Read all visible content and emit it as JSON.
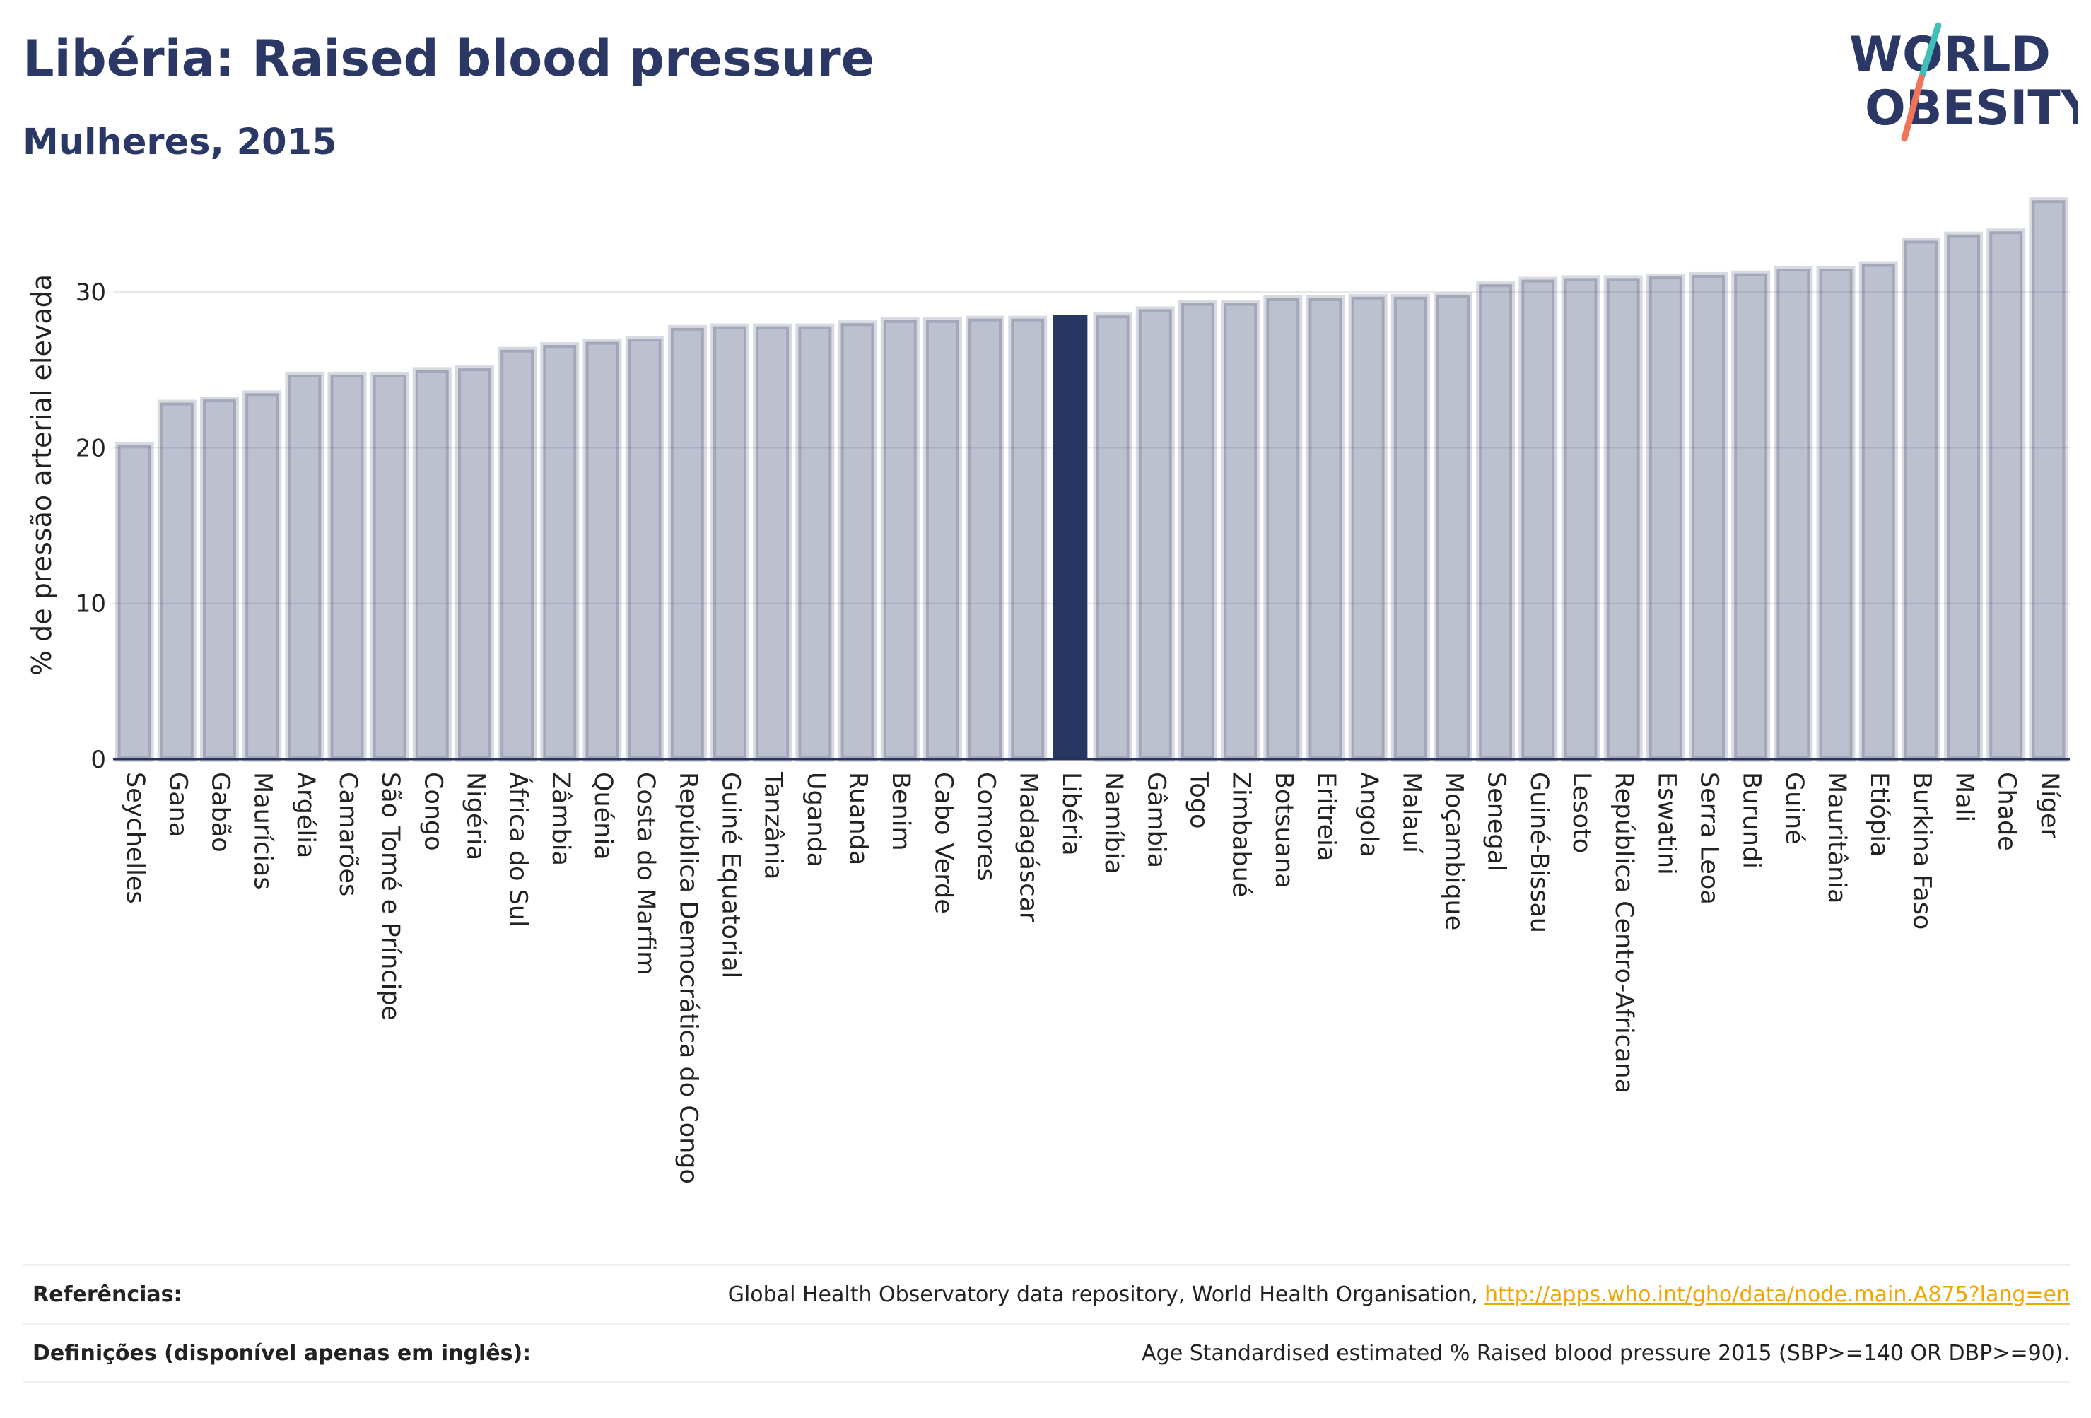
{
  "header": {
    "title": "Libéria: Raised blood pressure",
    "subtitle": "Mulheres, 2015"
  },
  "logo": {
    "line1": "WORLD",
    "line2": "OBESITY"
  },
  "colors": {
    "brand": "#253361",
    "highlight": "#283664",
    "bar": "#bfc3d0",
    "link": "#f0a500",
    "logo_teal": "#3fbfb8",
    "logo_coral": "#f0735a"
  },
  "chart_data": {
    "type": "bar",
    "title": "Libéria: Raised blood pressure",
    "subtitle": "Mulheres, 2015",
    "xlabel": "",
    "ylabel": "% de pressão arterial elevada",
    "ylim": [
      0,
      36.5
    ],
    "yticks": [
      0,
      10,
      20,
      30
    ],
    "grid": true,
    "highlight": "Libéria",
    "categories": [
      "Seychelles",
      "Gana",
      "Gabão",
      "Maurícias",
      "Argélia",
      "Camarões",
      "São Tomé e Príncipe",
      "Congo",
      "Nigéria",
      "África do Sul",
      "Zâmbia",
      "Quénia",
      "Costa do Marfim",
      "República Democrática do Congo",
      "Guiné Equatorial",
      "Tanzânia",
      "Uganda",
      "Ruanda",
      "Benim",
      "Cabo Verde",
      "Comores",
      "Madagáscar",
      "Libéria",
      "Namíbia",
      "Gâmbia",
      "Togo",
      "Zimbabué",
      "Botsuana",
      "Eritreia",
      "Angola",
      "Malauí",
      "Moçambique",
      "Senegal",
      "Guiné-Bissau",
      "Lesoto",
      "República Centro-Africana",
      "Eswatini",
      "Serra Leoa",
      "Burundi",
      "Guiné",
      "Mauritânia",
      "Etiópia",
      "Burkina Faso",
      "Mali",
      "Chade",
      "Níger"
    ],
    "values": [
      20.2,
      22.9,
      23.1,
      23.5,
      24.7,
      24.7,
      24.7,
      25.0,
      25.1,
      26.3,
      26.6,
      26.8,
      27.0,
      27.7,
      27.8,
      27.8,
      27.8,
      28.0,
      28.2,
      28.2,
      28.3,
      28.3,
      28.5,
      28.5,
      28.9,
      29.3,
      29.3,
      29.6,
      29.6,
      29.7,
      29.7,
      29.8,
      30.5,
      30.8,
      30.9,
      30.9,
      31.0,
      31.1,
      31.2,
      31.5,
      31.5,
      31.8,
      33.3,
      33.7,
      33.9,
      35.9
    ]
  },
  "footer": {
    "references_label": "Referências:",
    "references_text": "Global Health Observatory data repository, World Health Organisation, ",
    "references_link": "http://apps.who.int/gho/data/node.main.A875?lang=en",
    "definitions_label": "Definições (disponível apenas em inglês):",
    "definitions_text": "Age Standardised estimated % Raised blood pressure 2015 (SBP>=140 OR DBP>=90)."
  }
}
